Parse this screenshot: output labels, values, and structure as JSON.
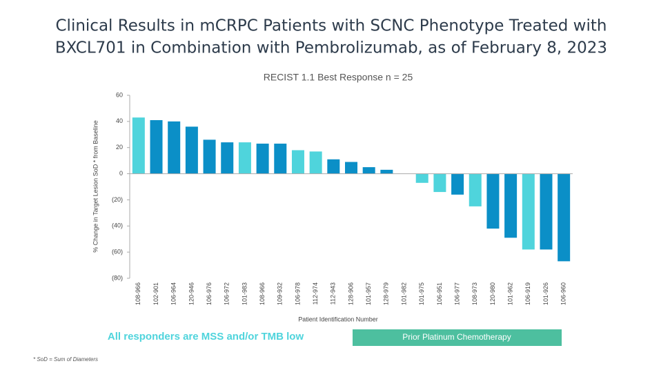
{
  "chart_data": {
    "type": "bar",
    "title": [
      "Clinical Results in mCRPC Patients with SCNC Phenotype Treated with",
      "BXCL701 in Combination with Pembrolizumab, as of February 8, 2023"
    ],
    "subtitle": "RECIST 1.1 Best Response n = 25",
    "ylabel": "% Change in Target Lesion        SoD * from Baseline",
    "xlabel": "Patient Identification Number",
    "categories": [
      "108-966",
      "102-901",
      "106-964",
      "120-946",
      "106-976",
      "106-972",
      "101-983",
      "108-966",
      "109-932",
      "106-978",
      "112-974",
      "112-943",
      "128-906",
      "101-957",
      "128-979",
      "101-982",
      "101-975",
      "106-951",
      "106-977",
      "108-973",
      "120-980",
      "101-962",
      "106-919",
      "101-926",
      "106-960"
    ],
    "values": [
      43,
      41,
      40,
      36,
      26,
      24,
      24,
      23,
      23,
      18,
      17,
      11,
      9,
      5,
      3,
      0,
      -7,
      -14,
      -16,
      -25,
      -42,
      -49,
      -58,
      -58,
      -67
    ],
    "colors": [
      "#4fd4dc",
      "#0b8fc7",
      "#0b8fc7",
      "#0b8fc7",
      "#0b8fc7",
      "#0b8fc7",
      "#4fd4dc",
      "#0b8fc7",
      "#0b8fc7",
      "#4fd4dc",
      "#4fd4dc",
      "#0b8fc7",
      "#0b8fc7",
      "#0b8fc7",
      "#0b8fc7",
      "#0b8fc7",
      "#4fd4dc",
      "#4fd4dc",
      "#0b8fc7",
      "#4fd4dc",
      "#0b8fc7",
      "#0b8fc7",
      "#4fd4dc",
      "#0b8fc7",
      "#0b8fc7"
    ],
    "ylim": [
      -80,
      60
    ],
    "yticks": [
      {
        "value": -80,
        "label": "(80)"
      },
      {
        "value": -60,
        "label": "(60)"
      },
      {
        "value": -40,
        "label": "(40)"
      },
      {
        "value": -20,
        "label": "(20)"
      },
      0,
      20,
      40,
      60
    ],
    "annotations": [
      "All responders are MSS and/or TMB low",
      "Prior Platinum Chemotherapy",
      "* SoD = Sum of Diameters"
    ]
  }
}
